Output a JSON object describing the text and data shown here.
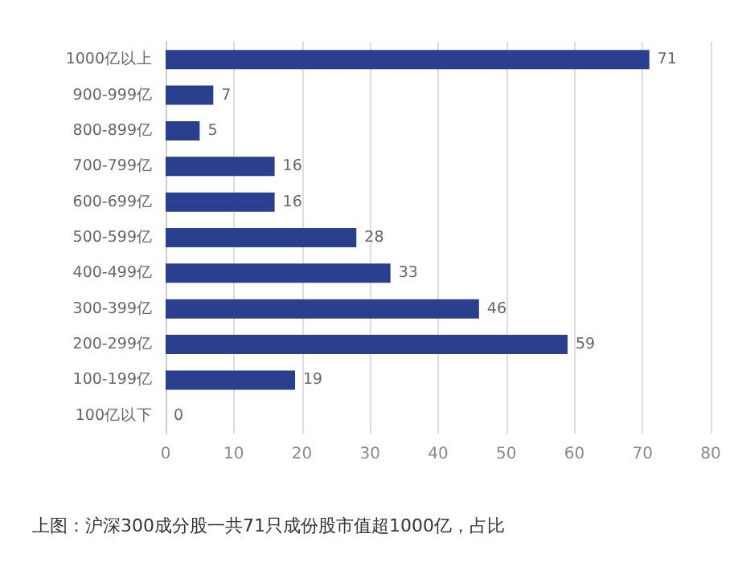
{
  "chart_data": {
    "type": "bar",
    "orientation": "horizontal",
    "categories": [
      "1000亿以上",
      "900-999亿",
      "800-899亿",
      "700-799亿",
      "600-699亿",
      "500-599亿",
      "400-499亿",
      "300-399亿",
      "200-299亿",
      "100-199亿",
      "100亿以下"
    ],
    "values": [
      71,
      7,
      5,
      16,
      16,
      28,
      33,
      46,
      59,
      19,
      0
    ],
    "color": "#2b3f8f",
    "xlim": [
      0,
      80
    ],
    "xticks": [
      0,
      10,
      20,
      30,
      40,
      50,
      60,
      70,
      80
    ],
    "grid": "x",
    "data_labels": true,
    "annotations": [
      "上图：沪深300成分股一共71只成份股市值超1000亿，占比"
    ]
  }
}
